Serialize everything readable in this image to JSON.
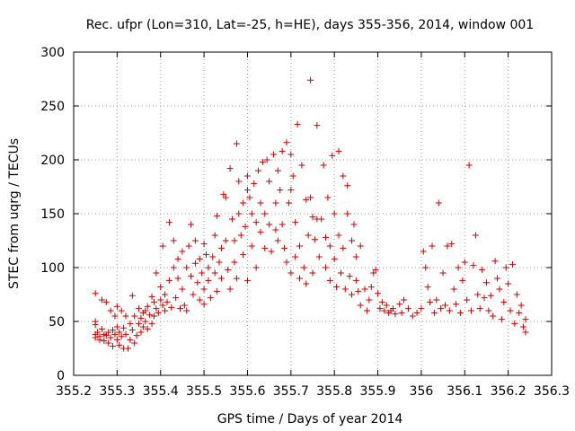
{
  "chart_data": {
    "type": "scatter",
    "title": "Rec. ufpr (Lon=310, Lat=-25, h=HE), days 355-356, 2014, window 001",
    "xlabel": "GPS time / Days of year 2014",
    "ylabel": "STEC from uqrg / TECUs",
    "xlim": [
      355.2,
      356.3
    ],
    "ylim": [
      0,
      300
    ],
    "xticks": [
      355.2,
      355.3,
      355.4,
      355.5,
      355.6,
      355.7,
      355.8,
      355.9,
      356,
      356.1,
      356.2,
      356.3
    ],
    "xtick_labels": [
      "355.2",
      "355.3",
      "355.4",
      "355.5",
      "355.6",
      "355.7",
      "355.8",
      "355.9",
      "356",
      "356.1",
      "356.2",
      "356.3"
    ],
    "yticks": [
      0,
      50,
      100,
      150,
      200,
      250,
      300
    ],
    "ytick_labels": [
      "0",
      "50",
      "100",
      "150",
      "200",
      "250",
      "300"
    ],
    "grid": true,
    "marker": "+",
    "color": "#cc0000",
    "series": [
      {
        "points": [
          [
            355.25,
            76
          ],
          [
            355.25,
            50
          ],
          [
            355.25,
            47
          ],
          [
            355.25,
            38
          ],
          [
            355.25,
            35
          ],
          [
            355.255,
            40
          ],
          [
            355.26,
            36
          ],
          [
            355.26,
            33
          ],
          [
            355.265,
            70
          ],
          [
            355.265,
            43
          ],
          [
            355.27,
            38
          ],
          [
            355.27,
            32
          ],
          [
            355.275,
            68
          ],
          [
            355.275,
            37
          ],
          [
            355.28,
            40
          ],
          [
            355.28,
            30
          ],
          [
            355.285,
            60
          ],
          [
            355.285,
            35
          ],
          [
            355.29,
            42
          ],
          [
            355.29,
            27
          ],
          [
            355.295,
            55
          ],
          [
            355.295,
            38
          ],
          [
            355.3,
            64
          ],
          [
            355.3,
            45
          ],
          [
            355.3,
            33
          ],
          [
            355.305,
            40
          ],
          [
            355.305,
            28
          ],
          [
            355.31,
            60
          ],
          [
            355.31,
            36
          ],
          [
            355.315,
            25
          ],
          [
            355.315,
            44
          ],
          [
            355.32,
            55
          ],
          [
            355.32,
            38
          ],
          [
            355.325,
            25
          ],
          [
            355.33,
            48
          ],
          [
            355.33,
            33
          ],
          [
            355.335,
            74
          ],
          [
            355.335,
            42
          ],
          [
            355.34,
            30
          ],
          [
            355.34,
            55
          ],
          [
            355.345,
            37
          ],
          [
            355.35,
            62
          ],
          [
            355.35,
            48
          ],
          [
            355.355,
            53
          ],
          [
            355.355,
            40
          ],
          [
            355.36,
            58
          ],
          [
            355.36,
            45
          ],
          [
            355.365,
            60
          ],
          [
            355.365,
            50
          ],
          [
            355.37,
            64
          ],
          [
            355.37,
            43
          ],
          [
            355.375,
            56
          ],
          [
            355.38,
            73
          ],
          [
            355.38,
            48
          ],
          [
            355.385,
            68
          ],
          [
            355.385,
            55
          ],
          [
            355.39,
            95
          ],
          [
            355.39,
            62
          ],
          [
            355.395,
            58
          ],
          [
            355.4,
            70
          ],
          [
            355.4,
            82
          ],
          [
            355.405,
            120
          ],
          [
            355.405,
            65
          ],
          [
            355.41,
            75
          ],
          [
            355.41,
            60
          ],
          [
            355.415,
            68
          ],
          [
            355.42,
            142
          ],
          [
            355.42,
            88
          ],
          [
            355.425,
            63
          ],
          [
            355.43,
            125
          ],
          [
            355.43,
            100
          ],
          [
            355.435,
            72
          ],
          [
            355.44,
            108
          ],
          [
            355.44,
            90
          ],
          [
            355.445,
            62
          ],
          [
            355.45,
            115
          ],
          [
            355.45,
            80
          ],
          [
            355.455,
            65
          ],
          [
            355.46,
            60
          ],
          [
            355.46,
            100
          ],
          [
            355.465,
            120
          ],
          [
            355.47,
            140
          ],
          [
            355.47,
            92
          ],
          [
            355.475,
            75
          ],
          [
            355.48,
            104
          ],
          [
            355.48,
            125
          ],
          [
            355.485,
            86
          ],
          [
            355.49,
            70
          ],
          [
            355.49,
            108
          ],
          [
            355.495,
            95
          ],
          [
            355.5,
            122
          ],
          [
            355.5,
            80
          ],
          [
            355.5,
            66
          ],
          [
            355.505,
            112
          ],
          [
            355.51,
            100
          ],
          [
            355.51,
            88
          ],
          [
            355.515,
            72
          ],
          [
            355.52,
            110
          ],
          [
            355.525,
            130
          ],
          [
            355.525,
            95
          ],
          [
            355.53,
            148
          ],
          [
            355.53,
            78
          ],
          [
            355.535,
            105
          ],
          [
            355.54,
            118
          ],
          [
            355.54,
            90
          ],
          [
            355.545,
            168
          ],
          [
            355.55,
            165
          ],
          [
            355.55,
            125
          ],
          [
            355.555,
            98
          ],
          [
            355.56,
            192
          ],
          [
            355.56,
            80
          ],
          [
            355.565,
            145
          ],
          [
            355.57,
            125
          ],
          [
            355.57,
            105
          ],
          [
            355.575,
            215
          ],
          [
            355.575,
            90
          ],
          [
            355.58,
            180
          ],
          [
            355.58,
            150
          ],
          [
            355.585,
            130
          ],
          [
            355.59,
            160
          ],
          [
            355.59,
            112
          ],
          [
            355.595,
            138
          ],
          [
            355.6,
            185
          ],
          [
            355.6,
            172
          ],
          [
            355.6,
            88
          ],
          [
            355.605,
            165
          ],
          [
            355.61,
            150
          ],
          [
            355.61,
            120
          ],
          [
            355.615,
            178
          ],
          [
            355.62,
            142
          ],
          [
            355.62,
            100
          ],
          [
            355.625,
            190
          ],
          [
            355.63,
            133
          ],
          [
            355.63,
            160
          ],
          [
            355.635,
            198
          ],
          [
            355.64,
            150
          ],
          [
            355.64,
            118
          ],
          [
            355.645,
            200
          ],
          [
            355.65,
            180
          ],
          [
            355.65,
            140
          ],
          [
            355.655,
            115
          ],
          [
            355.66,
            205
          ],
          [
            355.665,
            160
          ],
          [
            355.665,
            135
          ],
          [
            355.67,
            190
          ],
          [
            355.67,
            125
          ],
          [
            355.675,
            172
          ],
          [
            355.68,
            208
          ],
          [
            355.68,
            140
          ],
          [
            355.685,
            118
          ],
          [
            355.69,
            216
          ],
          [
            355.69,
            105
          ],
          [
            355.695,
            160
          ],
          [
            355.7,
            205
          ],
          [
            355.7,
            172
          ],
          [
            355.7,
            95
          ],
          [
            355.705,
            185
          ],
          [
            355.71,
            142
          ],
          [
            355.71,
            110
          ],
          [
            355.715,
            233
          ],
          [
            355.72,
            120
          ],
          [
            355.72,
            90
          ],
          [
            355.725,
            195
          ],
          [
            355.73,
            100
          ],
          [
            355.735,
            163
          ],
          [
            355.735,
            85
          ],
          [
            355.74,
            130
          ],
          [
            355.745,
            274
          ],
          [
            355.745,
            165
          ],
          [
            355.75,
            147
          ],
          [
            355.75,
            95
          ],
          [
            355.755,
            126
          ],
          [
            355.76,
            232
          ],
          [
            355.76,
            145
          ],
          [
            355.765,
            110
          ],
          [
            355.77,
            145
          ],
          [
            355.775,
            195
          ],
          [
            355.78,
            128
          ],
          [
            355.78,
            100
          ],
          [
            355.785,
            165
          ],
          [
            355.79,
            88
          ],
          [
            355.79,
            120
          ],
          [
            355.795,
            204
          ],
          [
            355.8,
            150
          ],
          [
            355.8,
            108
          ],
          [
            355.805,
            82
          ],
          [
            355.81,
            208
          ],
          [
            355.81,
            130
          ],
          [
            355.815,
            95
          ],
          [
            355.82,
            185
          ],
          [
            355.82,
            118
          ],
          [
            355.825,
            80
          ],
          [
            355.83,
            176
          ],
          [
            355.83,
            150
          ],
          [
            355.835,
            92
          ],
          [
            355.84,
            125
          ],
          [
            355.84,
            75
          ],
          [
            355.845,
            140
          ],
          [
            355.85,
            110
          ],
          [
            355.85,
            88
          ],
          [
            355.855,
            78
          ],
          [
            355.86,
            120
          ],
          [
            355.86,
            65
          ],
          [
            355.87,
            80
          ],
          [
            355.875,
            60
          ],
          [
            355.88,
            70
          ],
          [
            355.885,
            82
          ],
          [
            355.89,
            95
          ],
          [
            355.895,
            98
          ],
          [
            355.9,
            76
          ],
          [
            355.905,
            62
          ],
          [
            355.91,
            68
          ],
          [
            355.915,
            60
          ],
          [
            355.92,
            65
          ],
          [
            355.925,
            58
          ],
          [
            355.93,
            60
          ],
          [
            355.935,
            62
          ],
          [
            355.94,
            57
          ],
          [
            355.95,
            66
          ],
          [
            355.955,
            58
          ],
          [
            355.96,
            70
          ],
          [
            355.97,
            62
          ],
          [
            355.98,
            55
          ],
          [
            355.99,
            58
          ],
          [
            356,
            62
          ],
          [
            356.005,
            115
          ],
          [
            356.01,
            100
          ],
          [
            356.015,
            82
          ],
          [
            356.02,
            68
          ],
          [
            356.025,
            120
          ],
          [
            356.03,
            58
          ],
          [
            356.035,
            70
          ],
          [
            356.04,
            160
          ],
          [
            356.045,
            62
          ],
          [
            356.05,
            95
          ],
          [
            356.055,
            65
          ],
          [
            356.06,
            120
          ],
          [
            356.065,
            60
          ],
          [
            356.07,
            122
          ],
          [
            356.075,
            80
          ],
          [
            356.08,
            66
          ],
          [
            356.085,
            100
          ],
          [
            356.09,
            58
          ],
          [
            356.095,
            88
          ],
          [
            356.1,
            105
          ],
          [
            356.105,
            70
          ],
          [
            356.11,
            195
          ],
          [
            356.115,
            60
          ],
          [
            356.12,
            102
          ],
          [
            356.125,
            130
          ],
          [
            356.13,
            75
          ],
          [
            356.135,
            62
          ],
          [
            356.14,
            98
          ],
          [
            356.145,
            72
          ],
          [
            356.15,
            86
          ],
          [
            356.155,
            60
          ],
          [
            356.16,
            74
          ],
          [
            356.165,
            55
          ],
          [
            356.17,
            106
          ],
          [
            356.175,
            90
          ],
          [
            356.18,
            80
          ],
          [
            356.185,
            52
          ],
          [
            356.19,
            68
          ],
          [
            356.195,
            100
          ],
          [
            356.2,
            85
          ],
          [
            356.205,
            60
          ],
          [
            356.21,
            103
          ],
          [
            356.215,
            48
          ],
          [
            356.22,
            75
          ],
          [
            356.225,
            58
          ],
          [
            356.23,
            65
          ],
          [
            356.235,
            45
          ],
          [
            356.24,
            40
          ],
          [
            356.24,
            52
          ]
        ]
      }
    ]
  }
}
